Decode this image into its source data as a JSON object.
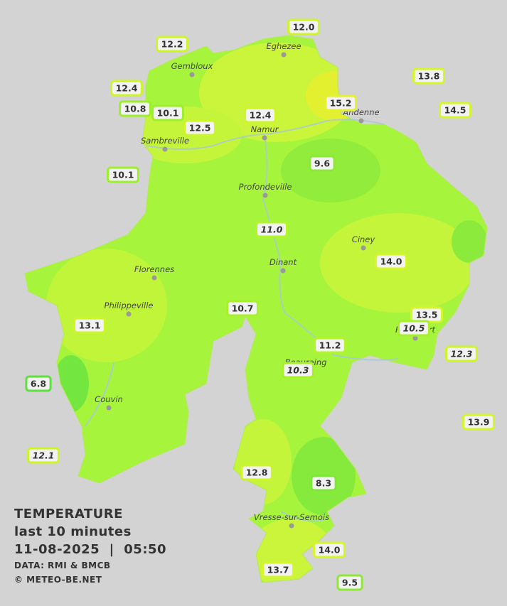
{
  "legend": {
    "title": "TEMPERATURE",
    "subtitle": "last 10 minutes",
    "datetime": "11-08-2025  |  05:50",
    "source": "DATA: RMI & BMCB",
    "copyright": "© METEO-BE.NET"
  },
  "cities": [
    "Eghezee",
    "Gembloux",
    "Andenne",
    "Namur",
    "Sambreville",
    "Profondeville",
    "Ciney",
    "Dinant",
    "Florennes",
    "Philippeville",
    "Rochefort",
    "Beauraing",
    "Couvin",
    "Vresse-sur-Semois"
  ],
  "stations": [
    {
      "label": "12.0",
      "italic": false,
      "color": "#cdf52a"
    },
    {
      "label": "12.2",
      "italic": false,
      "color": "#cdf52a"
    },
    {
      "label": "13.8",
      "italic": false,
      "color": "#d6f52a"
    },
    {
      "label": "12.4",
      "italic": false,
      "color": "#cdf52a"
    },
    {
      "label": "15.2",
      "italic": false,
      "color": "#e4f030"
    },
    {
      "label": "14.5",
      "italic": false,
      "color": "#d6f52a"
    },
    {
      "label": "10.8",
      "italic": false,
      "color": "#9cf02a"
    },
    {
      "label": "10.1",
      "italic": false,
      "color": "#9cf02a"
    },
    {
      "label": "12.4",
      "italic": false,
      "color": "#cdf52a"
    },
    {
      "label": "12.5",
      "italic": false,
      "color": "#cdf52a"
    },
    {
      "label": "9.6",
      "italic": false,
      "color": "#8ee83a"
    },
    {
      "label": "10.1",
      "italic": false,
      "color": "#9cf02a"
    },
    {
      "label": "11.0",
      "italic": true,
      "color": "#b4f52a"
    },
    {
      "label": "14.0",
      "italic": false,
      "color": "#d6f52a"
    },
    {
      "label": "10.7",
      "italic": false,
      "color": "#a8f02a"
    },
    {
      "label": "13.5",
      "italic": false,
      "color": "#d6f52a"
    },
    {
      "label": "10.5",
      "italic": true,
      "color": "#a8f02a"
    },
    {
      "label": "12.3",
      "italic": true,
      "color": "#cdf52a"
    },
    {
      "label": "13.1",
      "italic": false,
      "color": "#cdf52a"
    },
    {
      "label": "11.2",
      "italic": false,
      "color": "#b4f52a"
    },
    {
      "label": "10.3",
      "italic": true,
      "color": "#a8f02a"
    },
    {
      "label": "6.8",
      "italic": false,
      "color": "#5ee040"
    },
    {
      "label": "13.9",
      "italic": false,
      "color": "#d6f52a"
    },
    {
      "label": "12.1",
      "italic": true,
      "color": "#cdf52a"
    },
    {
      "label": "12.8",
      "italic": false,
      "color": "#cdf52a"
    },
    {
      "label": "8.3",
      "italic": false,
      "color": "#7ee83a"
    },
    {
      "label": "14.0",
      "italic": false,
      "color": "#d6f52a"
    },
    {
      "label": "13.7",
      "italic": false,
      "color": "#d6f52a"
    },
    {
      "label": "9.5",
      "italic": false,
      "color": "#8ee83a"
    }
  ]
}
